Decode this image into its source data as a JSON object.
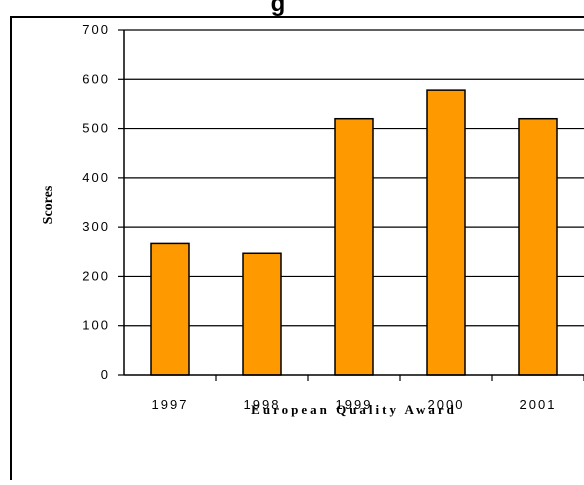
{
  "chart_data": {
    "type": "bar",
    "title": "g",
    "categories": [
      "1997",
      "1998",
      "1999",
      "2000",
      "2001"
    ],
    "values": [
      267,
      247,
      520,
      578,
      520
    ],
    "xlabel": "European Quality Award",
    "ylabel": "Scores",
    "ylim": [
      0,
      700
    ],
    "yticks": [
      0,
      100,
      200,
      300,
      400,
      500,
      600,
      700
    ],
    "bar_color": "#FF9900",
    "grid": true
  }
}
